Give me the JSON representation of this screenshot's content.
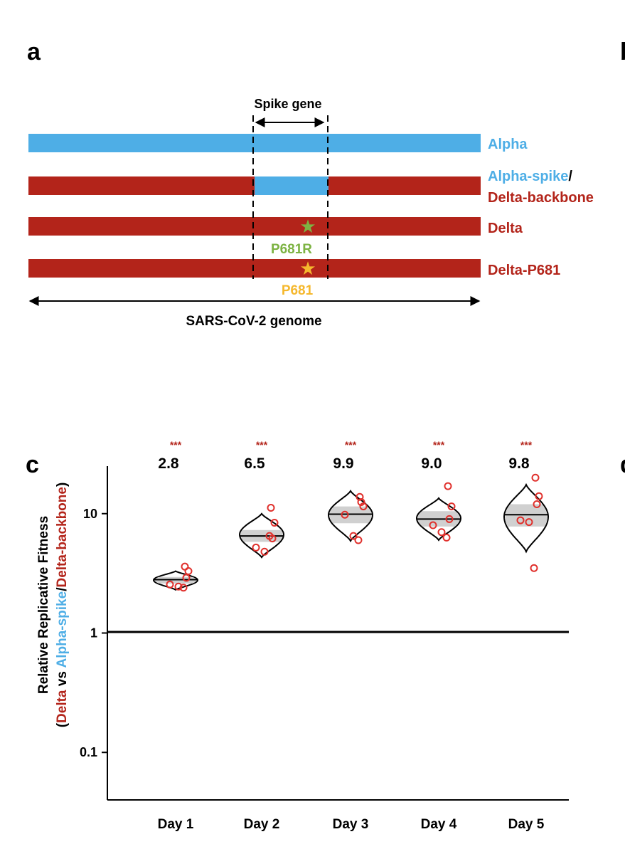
{
  "panel_a": {
    "label": "a",
    "spike_label": "Spike gene",
    "genome_label": "SARS-CoV-2 genome",
    "rows": [
      {
        "name": "Alpha",
        "color": "#4eaee6"
      },
      {
        "name_part1": "Alpha-spike",
        "name_slash": "/",
        "name_part2": "Delta-backbone"
      },
      {
        "name": "Delta",
        "mutation": "P681R",
        "mutation_color": "#7db343"
      },
      {
        "name": "Delta-P681",
        "mutation": "P681",
        "mutation_color": "#f5b82e"
      }
    ],
    "colors": {
      "alpha": "#4eaee6",
      "delta": "#b3241a"
    }
  },
  "edge_label_b": "b",
  "edge_label_d": "d",
  "chart_data": {
    "type": "scatter",
    "panel_label": "c",
    "ylabel_line1": "Relative Replicative Fitness",
    "ylabel_line2_parts": [
      "(",
      "Delta",
      " vs ",
      "Alpha-spike",
      "/",
      "Delta-backbone",
      ")"
    ],
    "yscale": "log",
    "ylim": [
      0.04,
      25
    ],
    "yticks": [
      0.1,
      1,
      10
    ],
    "ytick_labels": [
      "0.1",
      "1",
      "10"
    ],
    "reference_line": 1,
    "categories": [
      "Day 1",
      "Day 2",
      "Day 3",
      "Day 4",
      "Day 5"
    ],
    "medians": [
      2.8,
      6.5,
      9.9,
      9.0,
      9.8
    ],
    "median_labels": [
      "2.8",
      "6.5",
      "9.9",
      "9.0",
      "9.8"
    ],
    "significance": [
      "***",
      "***",
      "***",
      "***",
      "***"
    ],
    "violins": [
      {
        "low": 2.3,
        "high": 3.3,
        "iqr": [
          2.6,
          2.95
        ]
      },
      {
        "low": 4.3,
        "high": 10.0,
        "iqr": [
          5.8,
          7.3
        ]
      },
      {
        "low": 5.9,
        "high": 15.5,
        "iqr": [
          8.3,
          11.5
        ]
      },
      {
        "low": 6.0,
        "high": 13.5,
        "iqr": [
          7.8,
          10.5
        ]
      },
      {
        "low": 4.8,
        "high": 17.5,
        "iqr": [
          7.8,
          12.0
        ]
      }
    ],
    "points": [
      [
        3.6,
        3.3,
        2.9,
        2.55,
        2.45,
        2.4
      ],
      [
        11.2,
        8.4,
        6.2,
        5.2,
        4.8,
        6.5
      ],
      [
        13.8,
        11.5,
        12.5,
        9.8,
        6.5,
        6.0
      ],
      [
        17.0,
        11.5,
        9.0,
        8.0,
        7.0,
        6.3
      ],
      [
        20.0,
        14.0,
        12.0,
        8.8,
        8.5,
        3.5
      ]
    ],
    "colors": {
      "point": "#e0302c",
      "significance": "#b3241a",
      "iqr_fill": "#d0d0d0"
    }
  }
}
